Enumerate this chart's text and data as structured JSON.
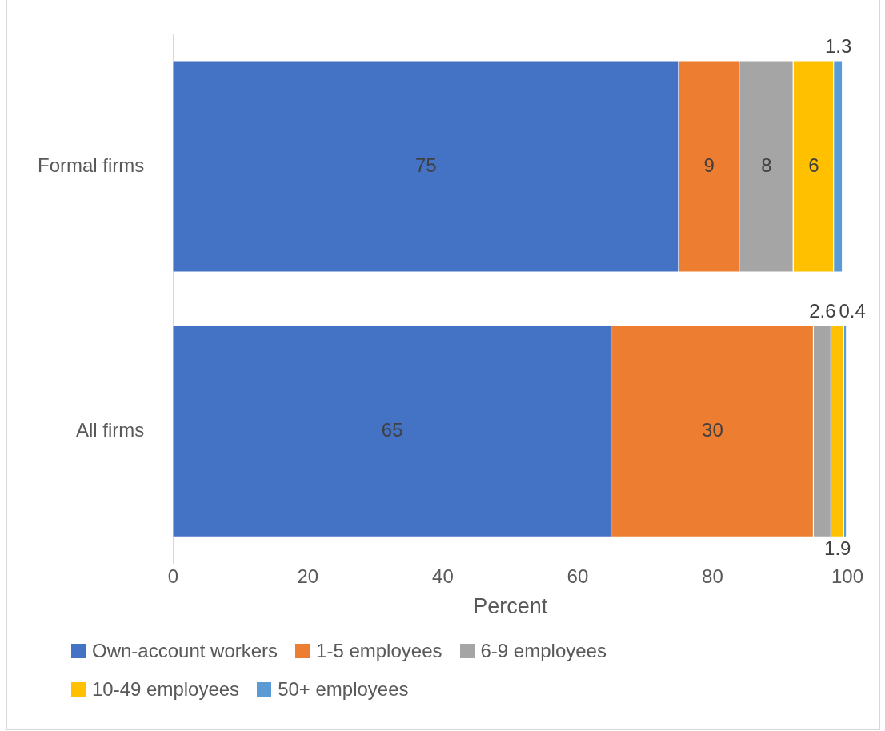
{
  "chart_data": {
    "type": "bar",
    "orientation": "horizontal",
    "stacked": true,
    "xlabel": "Percent",
    "categories": [
      "Formal firms",
      "All firms"
    ],
    "series": [
      {
        "name": "Own-account workers",
        "color": "#4472c4",
        "values": [
          75,
          65
        ]
      },
      {
        "name": "1-5 employees",
        "color": "#ed7d31",
        "values": [
          9,
          30
        ]
      },
      {
        "name": "6-9 employees",
        "color": "#a5a5a5",
        "values": [
          8,
          2.6
        ]
      },
      {
        "name": "10-49 employees",
        "color": "#ffc000",
        "values": [
          6,
          1.9
        ]
      },
      {
        "name": "50+ employees",
        "color": "#5b9bd5",
        "values": [
          1.3,
          0.4
        ]
      }
    ],
    "xlim": [
      0,
      100
    ],
    "xticks": [
      0,
      20,
      40,
      60,
      80,
      100
    ],
    "grid": false,
    "legend": "bottom",
    "data_labels": true
  }
}
